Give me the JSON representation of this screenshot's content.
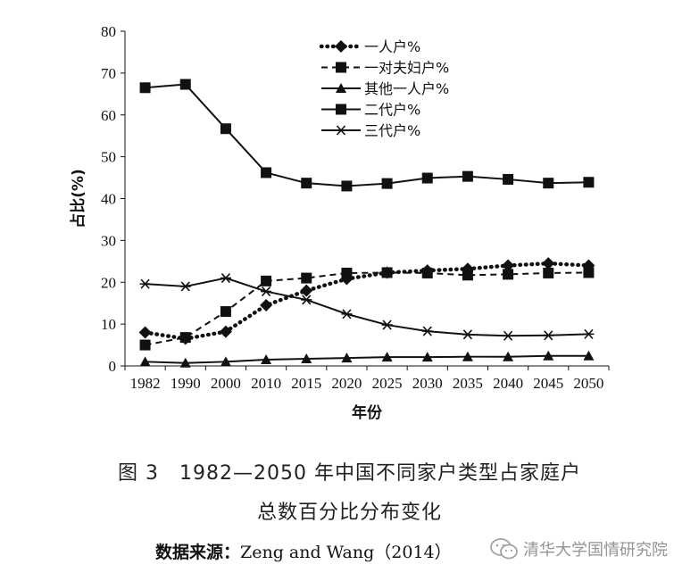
{
  "chart_data": {
    "type": "line",
    "categories": [
      "1982",
      "1990",
      "2000",
      "2010",
      "2015",
      "2020",
      "2025",
      "2030",
      "2035",
      "2040",
      "2045",
      "2050"
    ],
    "ylabel": "占比(%)",
    "xlabel": "年份",
    "ylim": [
      0,
      80
    ],
    "yticks": [
      0,
      10,
      20,
      30,
      40,
      50,
      60,
      70,
      80
    ],
    "grid": false,
    "legend_position": "top-right",
    "series": [
      {
        "name": "一人户%",
        "style": "dotted",
        "marker": "diamond",
        "values": [
          8.0,
          6.5,
          8.2,
          14.5,
          18.0,
          20.8,
          22.3,
          22.8,
          23.2,
          24.0,
          24.5,
          24.0
        ]
      },
      {
        "name": "一对夫妇户%",
        "style": "dashed",
        "marker": "square",
        "values": [
          5.0,
          6.8,
          13.0,
          20.3,
          21.0,
          22.2,
          22.3,
          22.2,
          21.7,
          21.9,
          22.2,
          22.3
        ]
      },
      {
        "name": "其他一人户%",
        "style": "solid",
        "marker": "triangle",
        "values": [
          1.0,
          0.7,
          1.0,
          1.5,
          1.7,
          1.9,
          2.1,
          2.1,
          2.2,
          2.2,
          2.4,
          2.4
        ]
      },
      {
        "name": "二代户%",
        "style": "solid",
        "marker": "square",
        "values": [
          66.5,
          67.3,
          56.7,
          46.2,
          43.7,
          43.0,
          43.6,
          44.9,
          45.3,
          44.6,
          43.7,
          43.9
        ]
      },
      {
        "name": "三代户%",
        "style": "solid",
        "marker": "star",
        "values": [
          19.6,
          19.0,
          21.0,
          17.8,
          15.8,
          12.4,
          9.8,
          8.3,
          7.5,
          7.2,
          7.3,
          7.6
        ]
      }
    ]
  },
  "caption": {
    "line1": "图 3　1982—2050 年中国不同家户类型占家庭户",
    "line2": "总数百分比分布变化"
  },
  "source": {
    "label": "数据来源：",
    "text": "Zeng and Wang（2014）"
  },
  "watermark": {
    "text": "清华大学国情研究院",
    "icon": "wechat-icon"
  }
}
